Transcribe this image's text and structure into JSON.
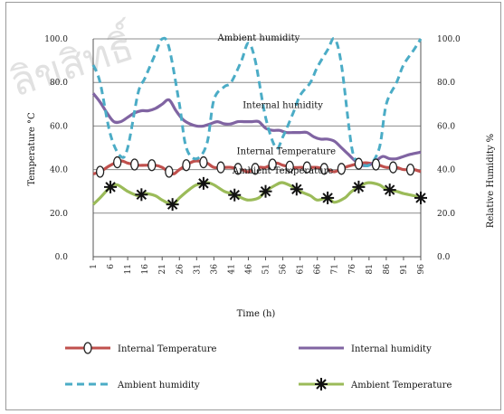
{
  "chart_data": {
    "type": "line",
    "title": "",
    "xlabel": "Time (h)",
    "ylabel_left": "Temperature °C",
    "ylabel_right": "Relative Humidity  %",
    "x_ticks": [
      1,
      6,
      11,
      16,
      21,
      26,
      31,
      36,
      41,
      46,
      51,
      56,
      61,
      66,
      71,
      76,
      81,
      86,
      91,
      96
    ],
    "xlim": [
      1,
      96
    ],
    "y_left_ticks": [
      "0.0",
      "20.0",
      "40.0",
      "60.0",
      "80.0",
      "100.0"
    ],
    "y_right_ticks": [
      "0.0",
      "20.0",
      "40.0",
      "60.0",
      "80.0",
      "100.0"
    ],
    "ylim": [
      0,
      100
    ],
    "grid": true,
    "legend_position": "bottom",
    "series": [
      {
        "name": "Internal Temperature",
        "color": "#c0504d",
        "marker": "ellipse",
        "x": [
          1,
          3,
          6,
          9,
          11,
          14,
          16,
          19,
          21,
          24,
          26,
          29,
          31,
          34,
          36,
          39,
          41,
          44,
          46,
          49,
          51,
          54,
          56,
          59,
          61,
          64,
          66,
          69,
          71,
          74,
          76,
          79,
          81,
          84,
          86,
          89,
          91,
          94,
          96
        ],
        "y": [
          38,
          39,
          42,
          44,
          43,
          42,
          42,
          42,
          41,
          38,
          40,
          43,
          44,
          43,
          41,
          41,
          41,
          40,
          39,
          41,
          41,
          43,
          42,
          41,
          41,
          41,
          41,
          40,
          39,
          41,
          42,
          43,
          43,
          42,
          41,
          41,
          40,
          40,
          39
        ]
      },
      {
        "name": "Internal humidity",
        "color": "#8064a2",
        "marker": "none",
        "x": [
          1,
          3,
          5,
          7,
          9,
          11,
          13,
          15,
          17,
          19,
          21,
          23,
          25,
          27,
          29,
          31,
          33,
          35,
          37,
          39,
          41,
          43,
          45,
          47,
          49,
          51,
          53,
          55,
          57,
          59,
          61,
          63,
          65,
          67,
          69,
          71,
          73,
          75,
          77,
          79,
          81,
          83,
          85,
          87,
          89,
          91,
          93,
          96
        ],
        "y": [
          75,
          71,
          66,
          62,
          62,
          64,
          66,
          67,
          67,
          68,
          70,
          72,
          67,
          63,
          61,
          60,
          60,
          61,
          62,
          61,
          61,
          62,
          62,
          62,
          62,
          59,
          58,
          58,
          57,
          57,
          57,
          57,
          55,
          54,
          54,
          53,
          50,
          47,
          44,
          42,
          42,
          44,
          46,
          45,
          45,
          46,
          47,
          48
        ]
      },
      {
        "name": "Ambient humidity",
        "color": "#4bacc6",
        "marker": "none",
        "dash": "dashed",
        "x": [
          1,
          3,
          6,
          9,
          11,
          14,
          16,
          19,
          21,
          23,
          26,
          28,
          31,
          34,
          36,
          39,
          41,
          44,
          46,
          48,
          51,
          54,
          56,
          59,
          61,
          64,
          66,
          69,
          71,
          73,
          76,
          78,
          81,
          84,
          86,
          89,
          91,
          94,
          96
        ],
        "y": [
          88,
          80,
          56,
          46,
          50,
          75,
          82,
          93,
          100,
          96,
          70,
          50,
          45,
          52,
          72,
          78,
          80,
          90,
          98,
          90,
          64,
          50,
          55,
          66,
          74,
          80,
          87,
          95,
          100,
          88,
          50,
          44,
          42,
          50,
          70,
          80,
          88,
          95,
          100
        ]
      },
      {
        "name": "Ambient Temperature",
        "color": "#9bbb59",
        "marker": "asterisk",
        "x": [
          1,
          3,
          6,
          8,
          11,
          14,
          16,
          19,
          21,
          24,
          26,
          29,
          31,
          34,
          36,
          39,
          41,
          44,
          46,
          49,
          51,
          54,
          56,
          59,
          61,
          64,
          66,
          69,
          71,
          74,
          76,
          79,
          81,
          84,
          86,
          89,
          91,
          94,
          96
        ],
        "y": [
          24,
          27,
          32,
          33,
          30,
          28,
          29,
          28,
          26,
          24,
          27,
          31,
          33,
          34,
          33,
          30,
          29,
          27,
          26,
          27,
          30,
          33,
          34,
          32,
          30,
          28,
          26,
          27,
          25,
          27,
          30,
          33,
          34,
          33,
          31,
          30,
          29,
          28,
          27
        ]
      }
    ],
    "annotations": [
      {
        "text": "Ambient humidity",
        "x": 49,
        "y": 100
      },
      {
        "text": "Internal humidity",
        "x": 56,
        "y": 69
      },
      {
        "text": "Internal Temperature",
        "x": 57,
        "y": 48
      },
      {
        "text": "Ambient Temperature",
        "x": 56,
        "y": 39
      }
    ],
    "legend": [
      {
        "label": "Internal Temperature",
        "series": 0
      },
      {
        "label": "Internal humidity",
        "series": 1
      },
      {
        "label": "Ambient humidity",
        "series": 2
      },
      {
        "label": "Ambient Temperature",
        "series": 3
      }
    ]
  }
}
